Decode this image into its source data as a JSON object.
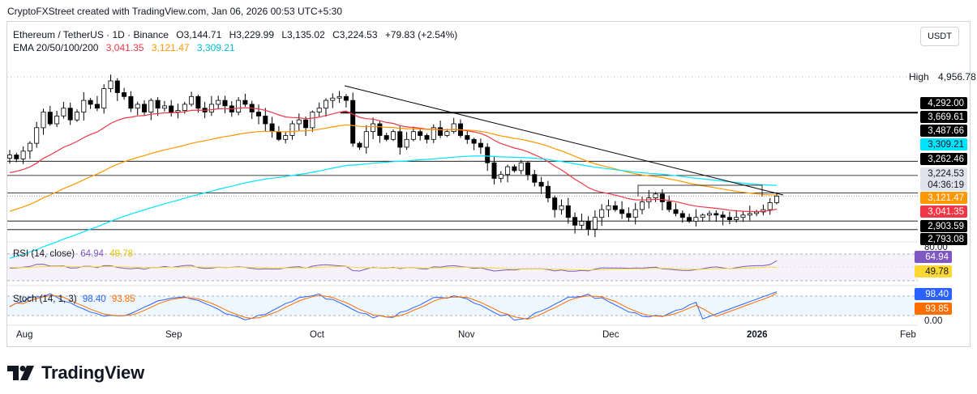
{
  "header": {
    "credit": "CryptoFXStreet created with TradingView.com, Jan 06, 2026 00:53 UTC+5:30"
  },
  "legend": {
    "symbol": "Ethereum / TetherUS · 1D · Binance",
    "open_label": "O",
    "open": "3,144.71",
    "high_label": "H",
    "high": "3,229.99",
    "low_label": "L",
    "low": "3,135.02",
    "close_label": "C",
    "close": "3,224.53",
    "change": "+79.83 (+2.54%)",
    "ema_title": "EMA 20/50/100/200",
    "ema20": "3,041.35",
    "ema50": "3,121.47",
    "ema100": "3,309.21"
  },
  "currency_button": "USDT",
  "high_marker": {
    "label": "High",
    "value": "4,956.78"
  },
  "price_axis": {
    "tags": [
      {
        "value": "4,292.00",
        "bg": "#000000",
        "fg": "#ffffff"
      },
      {
        "value": "3,669.61",
        "bg": "#000000",
        "fg": "#ffffff"
      },
      {
        "value": "3,487.66",
        "bg": "#000000",
        "fg": "#ffffff"
      },
      {
        "value": "3,309.21",
        "bg": "#00e5ff",
        "fg": "#131722"
      },
      {
        "value": "3,262.46",
        "bg": "#000000",
        "fg": "#ffffff"
      },
      {
        "value": "3,224.53",
        "bg": "#e0e3eb",
        "fg": "#131722"
      },
      {
        "value": "04:36:19",
        "bg": "#e0e3eb",
        "fg": "#131722"
      },
      {
        "value": "3,121.47",
        "bg": "#ff9800",
        "fg": "#ffffff"
      },
      {
        "value": "3,041.35",
        "bg": "#f23645",
        "fg": "#ffffff"
      },
      {
        "value": "2,903.59",
        "bg": "#000000",
        "fg": "#ffffff"
      },
      {
        "value": "2,793.08",
        "bg": "#000000",
        "fg": "#ffffff"
      }
    ]
  },
  "rsi": {
    "title": "RSI (14, close)",
    "value": "64.94",
    "ma": "49.78",
    "axis_top": "80.00",
    "tag_value": "64.94",
    "tag_ma": "49.78"
  },
  "stoch": {
    "title": "Stoch (14, 1, 3)",
    "k": "98.40",
    "d": "93.85",
    "axis_bottom": "0.00",
    "tag_k": "98.40",
    "tag_d": "93.85"
  },
  "time_axis": [
    "Aug",
    "Sep",
    "Oct",
    "Nov",
    "Dec",
    "2026",
    "Feb"
  ],
  "brand": "TradingView",
  "colors": {
    "up": "#ffffff",
    "down": "#000000",
    "ema20": "#f23645",
    "ema50": "#ff9800",
    "ema100": "#00e5ff",
    "rsi": "#7e57c2",
    "rsi_ma": "#fdd835",
    "stoch_k": "#2962ff",
    "stoch_d": "#ff6d00"
  },
  "chart_data": {
    "type": "candlestick",
    "symbol": "ETHUSDT",
    "interval": "1D",
    "price_levels": [
      4292.0,
      3669.61,
      3487.66,
      3262.46,
      2903.59,
      2793.08
    ],
    "ohlc_last": {
      "open": 3144.71,
      "high": 3229.99,
      "low": 3135.02,
      "close": 3224.53
    },
    "ema": {
      "ema20": 3041.35,
      "ema50": 3121.47,
      "ema100": 3309.21
    },
    "rsi": {
      "value": 64.94,
      "ma": 49.78
    },
    "stoch": {
      "k": 98.4,
      "d": 93.85
    },
    "close_series_approx": [
      3750,
      3700,
      3800,
      3900,
      4100,
      4300,
      4150,
      4250,
      4350,
      4200,
      4300,
      4450,
      4400,
      4350,
      4600,
      4700,
      4550,
      4500,
      4350,
      4400,
      4300,
      4450,
      4350,
      4380,
      4300,
      4320,
      4400,
      4500,
      4350,
      4300,
      4400,
      4450,
      4380,
      4300,
      4450,
      4400,
      4300,
      4250,
      4150,
      4050,
      3950,
      4000,
      4150,
      4200,
      4100,
      4300,
      4350,
      4450,
      4480,
      4500,
      4450,
      3900,
      3850,
      4050,
      4150,
      4000,
      3950,
      4050,
      3850,
      3950,
      4050,
      4000,
      3950,
      4100,
      4000,
      4050,
      4150,
      4000,
      3950,
      3900,
      3850,
      3650,
      3450,
      3500,
      3600,
      3550,
      3650,
      3500,
      3400,
      3350,
      3200,
      3050,
      3100,
      2950,
      2850,
      2900,
      2800,
      2950,
      3050,
      3100,
      3050,
      3000,
      2950,
      3050,
      3150,
      3200,
      3250,
      3150,
      3050,
      3000,
      2950,
      2900,
      2950,
      2980,
      3000,
      2980,
      2950,
      2920,
      2950,
      2980,
      3000,
      3020,
      3050,
      3140,
      3224
    ]
  }
}
